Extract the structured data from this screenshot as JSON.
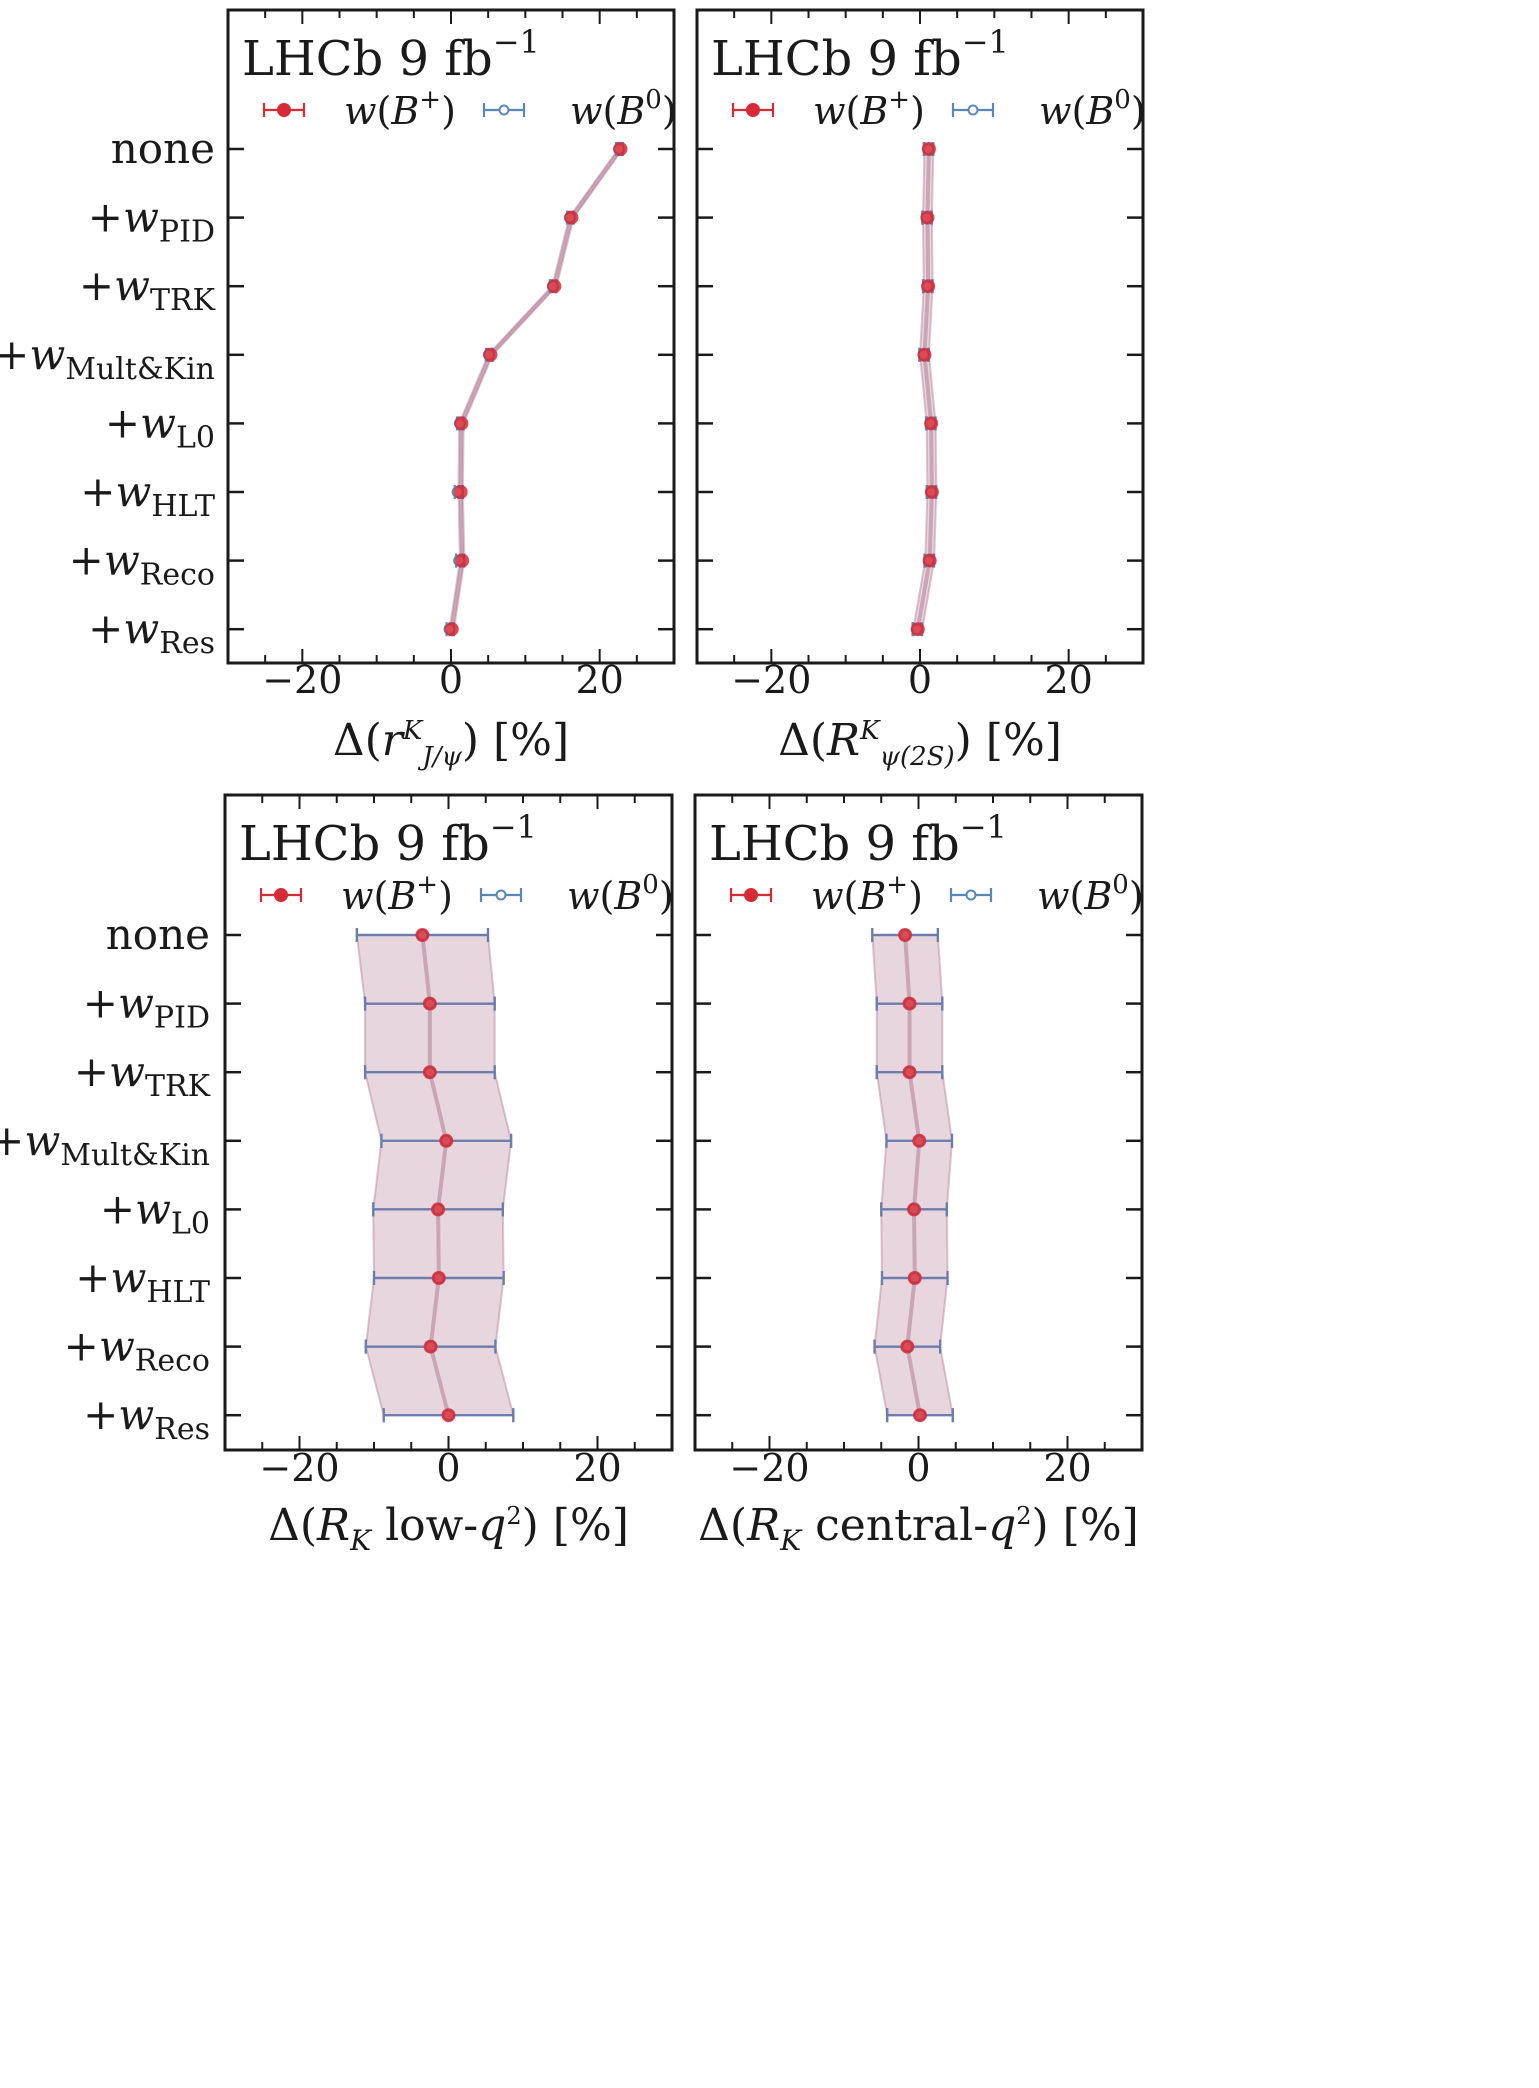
{
  "colors": {
    "b_plus": "#d62a35",
    "b_zero": "#5a86b8",
    "band_fill": "#b57e96",
    "errorbar": "#6c7cab",
    "frame": "#1a1a1a"
  },
  "chart_data": [
    {
      "type": "scatter",
      "title": "LHCb 9 fb⁻¹",
      "xlabel": "Δ(rᴷ J/ψ) [%]",
      "ylabel": "",
      "xlim": [
        -30,
        30
      ],
      "xticks": [
        -20,
        0,
        20
      ],
      "tick_labels": [
        "−20",
        "0",
        "20"
      ],
      "legend_position": "top",
      "categories": [
        "none",
        "+wPID",
        "+wTRK",
        "+wMult&Kin",
        "+wL0",
        "+wHLT",
        "+wReco",
        "+wRes"
      ],
      "series": [
        {
          "name": "w(B⁺)",
          "values": [
            22.8,
            16.2,
            13.9,
            5.3,
            1.4,
            1.3,
            1.5,
            0.1
          ],
          "err": [
            0.3,
            0.3,
            0.3,
            0.3,
            0.3,
            0.3,
            0.3,
            0.3
          ]
        },
        {
          "name": "w(B⁰)",
          "values": [
            22.6,
            16.0,
            13.7,
            5.1,
            1.2,
            0.9,
            1.1,
            -0.2
          ],
          "err": [
            0.4,
            0.4,
            0.4,
            0.4,
            0.4,
            0.4,
            0.4,
            0.4
          ]
        }
      ]
    },
    {
      "type": "scatter",
      "title": "LHCb 9 fb⁻¹",
      "xlabel": "Δ(Rᴷ ψ(2S)) [%]",
      "ylabel": "",
      "xlim": [
        -30,
        30
      ],
      "xticks": [
        -20,
        0,
        20
      ],
      "tick_labels": [
        "−20",
        "0",
        "20"
      ],
      "legend_position": "top",
      "categories": [
        "none",
        "+wPID",
        "+wTRK",
        "+wMult&Kin",
        "+wL0",
        "+wHLT",
        "+wReco",
        "+wRes"
      ],
      "series": [
        {
          "name": "w(B⁺)",
          "values": [
            1.2,
            1.0,
            1.1,
            0.6,
            1.5,
            1.6,
            1.3,
            -0.3
          ],
          "err": [
            0.6,
            0.6,
            0.6,
            0.6,
            0.6,
            0.6,
            0.6,
            0.6
          ]
        },
        {
          "name": "w(B⁰)",
          "values": [
            1.1,
            0.9,
            1.0,
            0.5,
            1.4,
            1.5,
            1.2,
            -0.4
          ],
          "err": [
            0.6,
            0.6,
            0.6,
            0.6,
            0.6,
            0.6,
            0.6,
            0.6
          ]
        }
      ]
    },
    {
      "type": "scatter",
      "title": "LHCb 9 fb⁻¹",
      "xlabel": "Δ(R_K low-q²) [%]",
      "ylabel": "",
      "xlim": [
        -30,
        30
      ],
      "xticks": [
        -20,
        0,
        20
      ],
      "tick_labels": [
        "−20",
        "0",
        "20"
      ],
      "legend_position": "top",
      "categories": [
        "none",
        "+wPID",
        "+wTRK",
        "+wMult&Kin",
        "+wL0",
        "+wHLT",
        "+wReco",
        "+wRes"
      ],
      "series": [
        {
          "name": "w(B⁺)",
          "values": [
            -3.5,
            -2.5,
            -2.5,
            -0.3,
            -1.4,
            -1.3,
            -2.4,
            0.0
          ],
          "err": [
            8.8,
            8.7,
            8.7,
            8.7,
            8.7,
            8.7,
            8.7,
            8.7
          ]
        },
        {
          "name": "w(B⁰)",
          "values": [
            -3.5,
            -2.5,
            -2.5,
            -0.3,
            -1.4,
            -1.3,
            -2.4,
            0.0
          ],
          "err": [
            8.8,
            8.7,
            8.7,
            8.7,
            8.7,
            8.7,
            8.7,
            8.7
          ]
        }
      ]
    },
    {
      "type": "scatter",
      "title": "LHCb 9 fb⁻¹",
      "xlabel": "Δ(R_K central-q²) [%]",
      "ylabel": "",
      "xlim": [
        -30,
        30
      ],
      "xticks": [
        -20,
        0,
        20
      ],
      "tick_labels": [
        "−20",
        "0",
        "20"
      ],
      "legend_position": "top",
      "categories": [
        "none",
        "+wPID",
        "+wTRK",
        "+wMult&Kin",
        "+wL0",
        "+wHLT",
        "+wReco",
        "+wRes"
      ],
      "series": [
        {
          "name": "w(B⁺)",
          "values": [
            -1.8,
            -1.2,
            -1.2,
            0.1,
            -0.6,
            -0.5,
            -1.5,
            0.2
          ],
          "err": [
            4.4,
            4.4,
            4.4,
            4.4,
            4.4,
            4.4,
            4.4,
            4.4
          ]
        },
        {
          "name": "w(B⁰)",
          "values": [
            -1.8,
            -1.2,
            -1.2,
            0.1,
            -0.6,
            -0.5,
            -1.5,
            0.2
          ],
          "err": [
            4.4,
            4.4,
            4.4,
            4.4,
            4.4,
            4.4,
            4.4,
            4.4
          ]
        }
      ]
    }
  ]
}
